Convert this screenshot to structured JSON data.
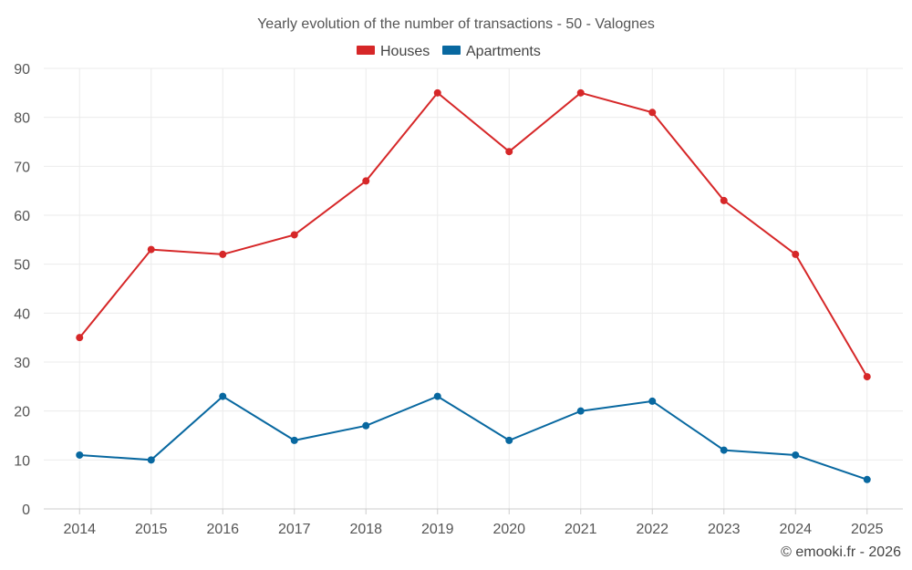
{
  "chart_data": {
    "type": "line",
    "title": "Yearly evolution of the number of transactions - 50 - Valognes",
    "categories": [
      "2014",
      "2015",
      "2016",
      "2017",
      "2018",
      "2019",
      "2020",
      "2021",
      "2022",
      "2023",
      "2024",
      "2025"
    ],
    "series": [
      {
        "name": "Houses",
        "color": "#d62728",
        "values": [
          35,
          53,
          52,
          56,
          67,
          85,
          73,
          85,
          81,
          63,
          52,
          27
        ]
      },
      {
        "name": "Apartments",
        "color": "#0868a0",
        "values": [
          11,
          10,
          23,
          14,
          17,
          23,
          14,
          20,
          22,
          12,
          11,
          6
        ]
      }
    ],
    "ylim": [
      0,
      90
    ],
    "yticks": [
      0,
      10,
      20,
      30,
      40,
      50,
      60,
      70,
      80,
      90
    ],
    "xlabel": "",
    "ylabel": "",
    "grid": true,
    "legend_position": "top-center"
  },
  "credit": "© emooki.fr - 2026"
}
